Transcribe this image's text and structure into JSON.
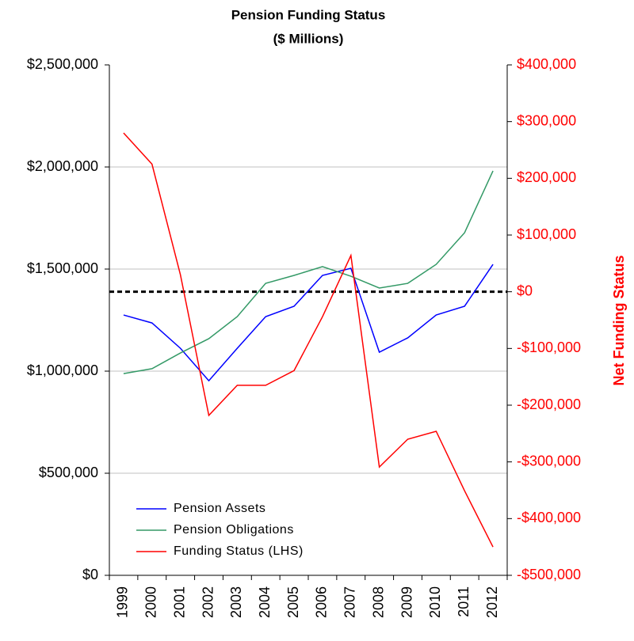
{
  "chart_data": {
    "type": "line",
    "title": "Pension Funding Status",
    "subtitle": "($ Millions)",
    "y2_label": "Net Funding Status",
    "categories": [
      "1999",
      "2000",
      "2001",
      "2002",
      "2003",
      "2004",
      "2005",
      "2006",
      "2007",
      "2008",
      "2009",
      "2010",
      "2011",
      "2012"
    ],
    "series": [
      {
        "name": "Pension Assets",
        "color": "#0000ff",
        "values": [
          1275000,
          1236000,
          1112000,
          953000,
          1112000,
          1267000,
          1318000,
          1469000,
          1504000,
          1093000,
          1163000,
          1275000,
          1318000,
          1523000
        ]
      },
      {
        "name": "Pension Obligations",
        "color": "#339966",
        "values": [
          988000,
          1012000,
          1089000,
          1159000,
          1267000,
          1430000,
          1469000,
          1512000,
          1465000,
          1407000,
          1430000,
          1523000,
          1678000,
          1981000
        ]
      },
      {
        "name": "Funding Status (LHS)",
        "color": "#ff0000",
        "axis": "y2",
        "values": [
          280000,
          225000,
          30000,
          -218000,
          -165000,
          -165000,
          -139000,
          -44000,
          64000,
          -309000,
          -260000,
          -246000,
          -351000,
          -450000
        ]
      }
    ],
    "ylim": [
      0,
      2500000
    ],
    "yticks": [
      {
        "value": 0,
        "label": "$0"
      },
      {
        "value": 500000,
        "label": "$500,000"
      },
      {
        "value": 1000000,
        "label": "$1,000,000"
      },
      {
        "value": 1500000,
        "label": "$1,500,000"
      },
      {
        "value": 2000000,
        "label": "$2,000,000"
      },
      {
        "value": 2500000,
        "label": "$2,500,000"
      }
    ],
    "y2lim": [
      -500000,
      400000
    ],
    "y2ticks": [
      {
        "value": -500000,
        "label": "-$500,000"
      },
      {
        "value": -400000,
        "label": "-$400,000"
      },
      {
        "value": -300000,
        "label": "-$300,000"
      },
      {
        "value": -200000,
        "label": "-$200,000"
      },
      {
        "value": -100000,
        "label": "-$100,000"
      },
      {
        "value": 0,
        "label": "$0"
      },
      {
        "value": 100000,
        "label": "$100,000"
      },
      {
        "value": 200000,
        "label": "$200,000"
      },
      {
        "value": 300000,
        "label": "$300,000"
      },
      {
        "value": 400000,
        "label": "$400,000"
      }
    ],
    "y2_color": "#ff0000",
    "reference_line": {
      "axis": "y2",
      "value": 0
    },
    "grid": true,
    "legend": "lower left"
  }
}
